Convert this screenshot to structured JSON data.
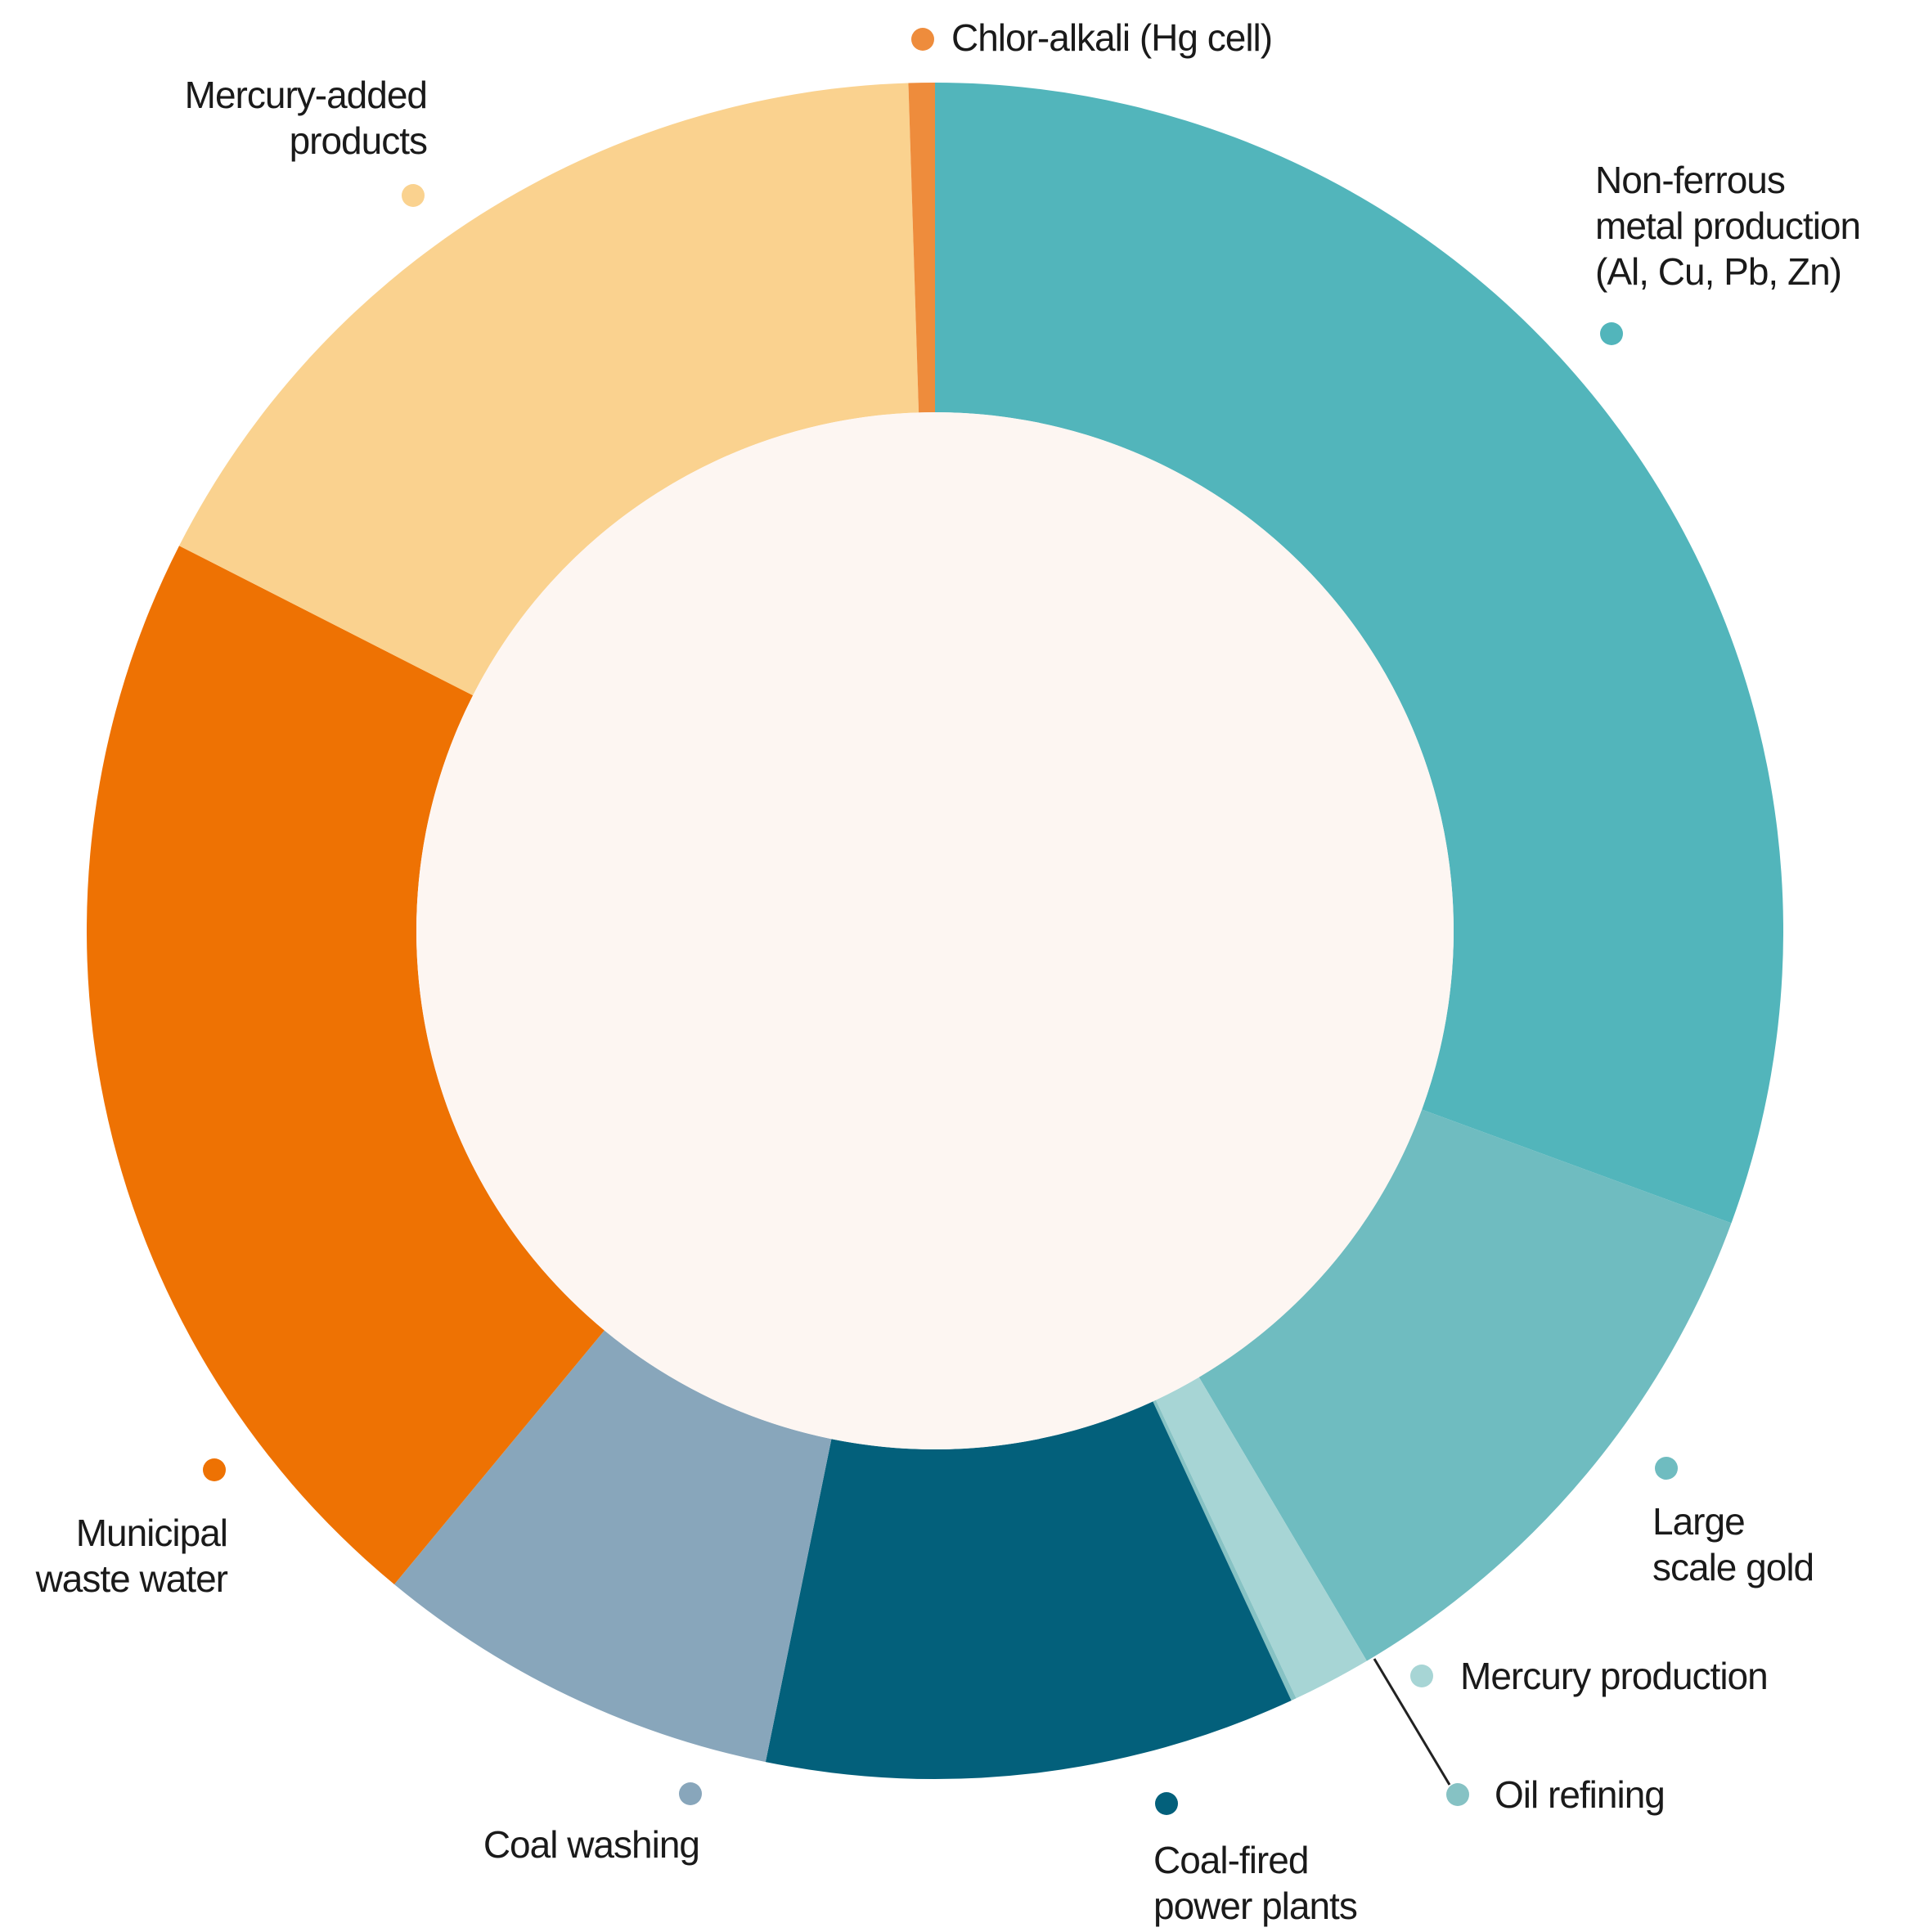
{
  "chart_data": {
    "type": "pie",
    "variant": "donut",
    "title": "",
    "start_angle_deg": 0,
    "direction": "clockwise",
    "inner_background": "#fdf6f2",
    "slices": [
      {
        "key": "nonferrous",
        "lines": [
          "Non-ferrous",
          "metal production",
          "(Al, Cu, Pb, Zn)"
        ],
        "value": 30.6,
        "color": "#52b5bb"
      },
      {
        "key": "gold",
        "lines": [
          "Large",
          "scale gold"
        ],
        "value": 10.9,
        "color": "#6fbcc0"
      },
      {
        "key": "hgprod",
        "lines": [
          "Mercury production"
        ],
        "value": 1.5,
        "color": "#a7d5d5"
      },
      {
        "key": "oil",
        "lines": [
          "Oil refining"
        ],
        "value": 0.1,
        "color": "#86c2c4"
      },
      {
        "key": "coalfired",
        "lines": [
          "Coal-fired",
          "power plants"
        ],
        "value": 10.1,
        "color": "#03607b"
      },
      {
        "key": "coalwash",
        "lines": [
          "Coal washing"
        ],
        "value": 7.8,
        "color": "#88a6bb"
      },
      {
        "key": "municipal",
        "lines": [
          "Municipal",
          "waste water"
        ],
        "value": 21.5,
        "color": "#ee7203"
      },
      {
        "key": "products",
        "lines": [
          "Mercury-added",
          "products"
        ],
        "value": 17.0,
        "color": "#fad28f"
      },
      {
        "key": "chloralkali",
        "lines": [
          "Chlor-alkali (Hg cell)"
        ],
        "value": 0.5,
        "color": "#ee8c3c"
      }
    ]
  }
}
